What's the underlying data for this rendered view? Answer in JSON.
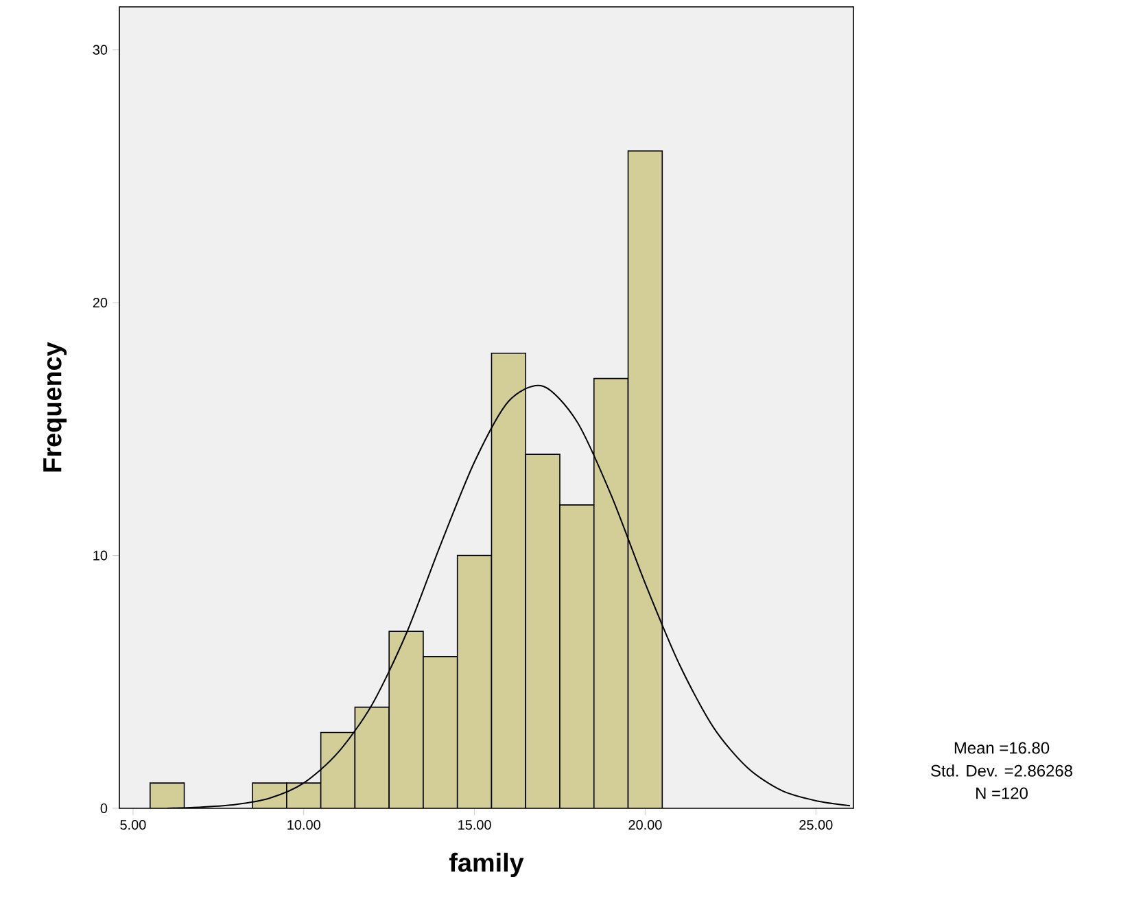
{
  "chart_data": {
    "type": "histogram",
    "xlabel": "family",
    "ylabel": "Frequency",
    "xlim": [
      4.6,
      26.1
    ],
    "ylim": [
      0,
      31.7
    ],
    "xticks": [
      {
        "value": 5,
        "label": "5.00"
      },
      {
        "value": 10,
        "label": "10.00"
      },
      {
        "value": 15,
        "label": "15.00"
      },
      {
        "value": 20,
        "label": "20.00"
      },
      {
        "value": 25,
        "label": "25.00"
      }
    ],
    "yticks": [
      0,
      10,
      20,
      30
    ],
    "grid": false,
    "series": [
      {
        "color": "#d3ce97",
        "bins": [
          5.5,
          6.5,
          7.5,
          8.5,
          9.5,
          10.5,
          11.5,
          12.5,
          13.5,
          14.5,
          15.5,
          16.5,
          17.5,
          18.5,
          19.5,
          20.5
        ],
        "values": [
          1,
          0,
          0,
          1,
          1,
          3,
          4,
          7,
          6,
          10,
          18,
          14,
          12,
          17,
          26
        ]
      },
      {
        "type": "line",
        "color": "#000000",
        "x": [
          6,
          7,
          8,
          9,
          10,
          11,
          12,
          13,
          14,
          15,
          16,
          17,
          18,
          19,
          20,
          21,
          22,
          23,
          24,
          25,
          26
        ],
        "values": [
          0.0,
          0.05,
          0.15,
          0.4,
          1.0,
          2.2,
          4.1,
          6.9,
          10.4,
          13.7,
          16.1,
          16.7,
          15.3,
          12.4,
          8.9,
          5.7,
          3.2,
          1.6,
          0.7,
          0.3,
          0.1
        ]
      }
    ],
    "annotations": [
      "Mean =16.80",
      "Std. Dev. =2.86268",
      "N =120"
    ]
  }
}
